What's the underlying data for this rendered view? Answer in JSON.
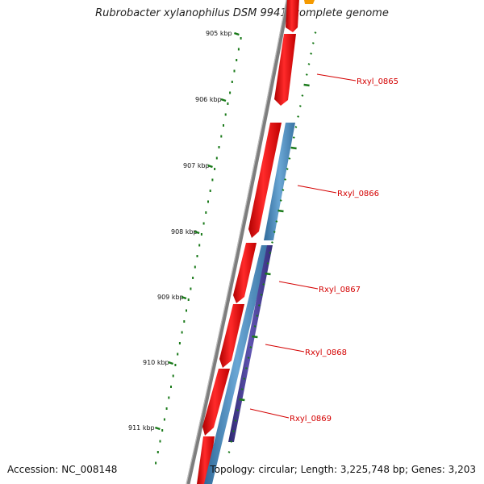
{
  "title": "Rubrobacter xylanophilus DSM 9941, complete genome",
  "accession": "Accession: NC_008148",
  "topology": "Topology: circular; Length: 3,225,748 bp; Genes: 3,203",
  "ruler": {
    "ticks": [
      {
        "label": "905 kbp"
      },
      {
        "label": "906 kbp"
      },
      {
        "label": "907 kbp"
      },
      {
        "label": "908 kbp"
      },
      {
        "label": "909 kbp"
      },
      {
        "label": "910 kbp"
      },
      {
        "label": "911 kbp"
      }
    ]
  },
  "genes": [
    {
      "label": "Rxyl_0865"
    },
    {
      "label": "Rxyl_0866"
    },
    {
      "label": "Rxyl_0867"
    },
    {
      "label": "Rxyl_0868"
    },
    {
      "label": "Rxyl_0869"
    }
  ],
  "colors": {
    "backbone": "#888888",
    "gene_forward": "#ee0000",
    "cds_blue": "#4a86b8",
    "cds_purple": "#4a3f8f",
    "ruler": "#1a7a1a",
    "label_red": "#d40000",
    "accent_orange": "#f59a00"
  }
}
